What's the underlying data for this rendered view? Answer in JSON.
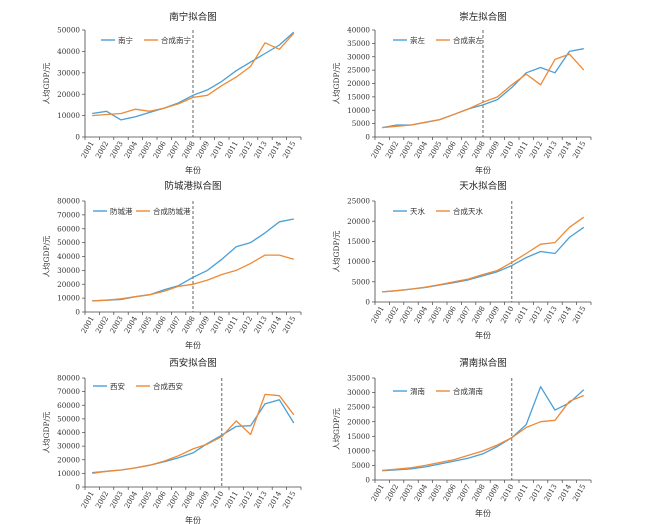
{
  "colors": {
    "actual": "#4a9fd8",
    "synthetic": "#ee8a36",
    "axis": "#444444",
    "divider": "#555555"
  },
  "chart_data": [
    {
      "type": "line",
      "title": "南宁拟合图",
      "xlabel": "年份",
      "ylabel": "人均GDP/元",
      "x": [
        "2001",
        "2002",
        "2003",
        "2004",
        "2005",
        "2006",
        "2007",
        "2008",
        "2009",
        "2010",
        "2011",
        "2012",
        "2013",
        "2014",
        "2015"
      ],
      "ylim": [
        0,
        50000
      ],
      "yticks": [
        0,
        10000,
        20000,
        30000,
        40000,
        50000
      ],
      "treatment_year": "2008",
      "legend": "top-left",
      "series": [
        {
          "name": "南宁",
          "values": [
            11000,
            12000,
            8000,
            9500,
            11500,
            13500,
            16000,
            19500,
            22000,
            26000,
            31000,
            35000,
            39000,
            43000,
            49000
          ]
        },
        {
          "name": "合成南宁",
          "values": [
            10000,
            10500,
            11000,
            13000,
            12000,
            13500,
            15500,
            18500,
            19500,
            24000,
            28000,
            33000,
            44000,
            41000,
            48500
          ]
        }
      ]
    },
    {
      "type": "line",
      "title": "崇左拟合图",
      "xlabel": "年份",
      "ylabel": "人均GDP/元",
      "x": [
        "2001",
        "2002",
        "2003",
        "2004",
        "2005",
        "2006",
        "2007",
        "2008",
        "2009",
        "2010",
        "2011",
        "2012",
        "2013",
        "2014",
        "2015"
      ],
      "ylim": [
        0,
        40000
      ],
      "yticks": [
        0,
        5000,
        10000,
        15000,
        20000,
        25000,
        30000,
        35000,
        40000
      ],
      "treatment_year": "2008",
      "legend": "top-left",
      "series": [
        {
          "name": "崇左",
          "values": [
            3500,
            4500,
            4500,
            5500,
            6500,
            8500,
            10500,
            12000,
            14000,
            18500,
            24000,
            26000,
            24000,
            32000,
            33000
          ]
        },
        {
          "name": "合成崇左",
          "values": [
            3500,
            4000,
            4500,
            5500,
            6500,
            8500,
            10500,
            13000,
            15000,
            19500,
            23500,
            19500,
            29000,
            31000,
            25000
          ]
        }
      ]
    },
    {
      "type": "line",
      "title": "防城港拟合图",
      "xlabel": "年份",
      "ylabel": "人均GDP/元",
      "x": [
        "2001",
        "2002",
        "2003",
        "2004",
        "2005",
        "2006",
        "2007",
        "2008",
        "2009",
        "2010",
        "2011",
        "2012",
        "2013",
        "2014",
        "2015"
      ],
      "ylim": [
        0,
        80000
      ],
      "yticks": [
        0,
        10000,
        20000,
        30000,
        40000,
        50000,
        60000,
        70000,
        80000
      ],
      "treatment_year": "2008",
      "legend": "top-left",
      "series": [
        {
          "name": "防城港",
          "values": [
            8000,
            8500,
            9000,
            11000,
            12500,
            16000,
            19000,
            25000,
            30000,
            38000,
            47000,
            50000,
            57000,
            65000,
            67000
          ]
        },
        {
          "name": "合成防城港",
          "values": [
            8000,
            8500,
            9500,
            11000,
            12500,
            15000,
            18500,
            20000,
            23000,
            27000,
            30000,
            35000,
            41000,
            41000,
            38000
          ]
        }
      ]
    },
    {
      "type": "line",
      "title": "天水拟合图",
      "xlabel": "年份",
      "ylabel": "人均GDP/元",
      "x": [
        "2001",
        "2002",
        "2003",
        "2004",
        "2005",
        "2006",
        "2007",
        "2008",
        "2009",
        "2010",
        "2011",
        "2012",
        "2013",
        "2014",
        "2015"
      ],
      "ylim": [
        0,
        25000
      ],
      "yticks": [
        0,
        5000,
        10000,
        15000,
        20000,
        25000
      ],
      "treatment_year": "2010",
      "legend": "top-left",
      "series": [
        {
          "name": "天水",
          "values": [
            2500,
            2800,
            3200,
            3600,
            4200,
            4800,
            5500,
            6500,
            7500,
            9000,
            11000,
            12500,
            12000,
            16000,
            18500
          ]
        },
        {
          "name": "合成天水",
          "values": [
            2500,
            2800,
            3200,
            3700,
            4300,
            5000,
            5700,
            6800,
            7800,
            9800,
            12000,
            14300,
            14700,
            18500,
            21000
          ]
        }
      ]
    },
    {
      "type": "line",
      "title": "西安拟合图",
      "xlabel": "年份",
      "ylabel": "人均GDP/元",
      "x": [
        "2001",
        "2002",
        "2003",
        "2004",
        "2005",
        "2006",
        "2007",
        "2008",
        "2009",
        "2010",
        "2011",
        "2012",
        "2013",
        "2014",
        "2015"
      ],
      "ylim": [
        0,
        80000
      ],
      "yticks": [
        0,
        10000,
        20000,
        30000,
        40000,
        50000,
        60000,
        70000,
        80000
      ],
      "treatment_year": "2010",
      "legend": "top-left",
      "series": [
        {
          "name": "西安",
          "values": [
            10500,
            11500,
            12500,
            14000,
            16000,
            18500,
            21500,
            25000,
            32000,
            38000,
            44500,
            45000,
            61000,
            64000,
            47000
          ]
        },
        {
          "name": "合成西安",
          "values": [
            10000,
            11500,
            12500,
            14000,
            16000,
            19000,
            23000,
            28000,
            31500,
            37000,
            48500,
            38500,
            68000,
            67000,
            53000
          ]
        }
      ]
    },
    {
      "type": "line",
      "title": "渭南拟合图",
      "xlabel": "年份",
      "ylabel": "人均GDP/元",
      "x": [
        "2001",
        "2002",
        "2003",
        "2004",
        "2005",
        "2006",
        "2007",
        "2008",
        "2009",
        "2010",
        "2011",
        "2012",
        "2013",
        "2014",
        "2015"
      ],
      "ylim": [
        0,
        35000
      ],
      "yticks": [
        0,
        5000,
        10000,
        15000,
        20000,
        25000,
        30000,
        35000
      ],
      "treatment_year": "2010",
      "legend": "top-left",
      "series": [
        {
          "name": "渭南",
          "values": [
            3200,
            3500,
            3800,
            4500,
            5500,
            6500,
            7500,
            9000,
            11500,
            14500,
            19000,
            32000,
            24000,
            26500,
            31000
          ]
        },
        {
          "name": "合成渭南",
          "values": [
            3300,
            3700,
            4200,
            5000,
            6000,
            7000,
            8500,
            10000,
            12000,
            14500,
            18000,
            20000,
            20500,
            27000,
            29000
          ]
        }
      ]
    }
  ]
}
